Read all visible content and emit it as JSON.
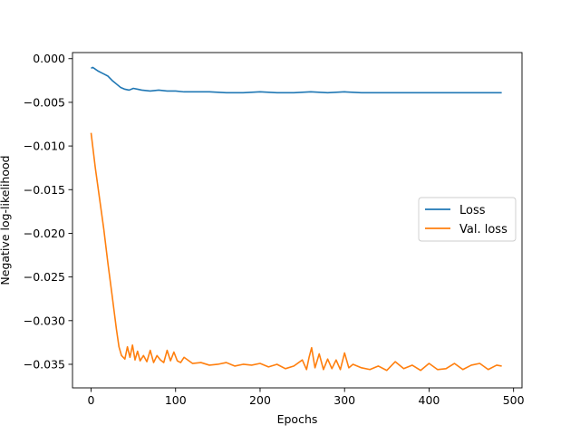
{
  "chart_data": {
    "type": "line",
    "title": "",
    "xlabel": "Epochs",
    "ylabel": "Negative log-likelihood",
    "xlim": [
      -22,
      510
    ],
    "ylim": [
      -0.0377,
      0.0007
    ],
    "x_ticks": [
      0,
      100,
      200,
      300,
      400,
      500
    ],
    "x_tick_labels": [
      "0",
      "100",
      "200",
      "300",
      "400",
      "500"
    ],
    "y_ticks": [
      0.0,
      -0.005,
      -0.01,
      -0.015,
      -0.02,
      -0.025,
      -0.03,
      -0.035
    ],
    "y_tick_labels": [
      "0.000",
      "−0.005",
      "−0.010",
      "−0.015",
      "−0.020",
      "−0.025",
      "−0.030",
      "−0.035"
    ],
    "grid": false,
    "legend_position": "center-right",
    "series": [
      {
        "name": "Loss",
        "color": "#1f77b4",
        "x": [
          0,
          2,
          5,
          8,
          12,
          16,
          20,
          25,
          30,
          35,
          40,
          45,
          50,
          55,
          60,
          70,
          80,
          90,
          100,
          110,
          120,
          140,
          160,
          180,
          200,
          220,
          240,
          260,
          280,
          300,
          320,
          340,
          360,
          380,
          400,
          420,
          440,
          460,
          486
        ],
        "y": [
          -0.0011,
          -0.001,
          -0.0012,
          -0.0014,
          -0.0016,
          -0.0018,
          -0.002,
          -0.0025,
          -0.0029,
          -0.0033,
          -0.0035,
          -0.0036,
          -0.0034,
          -0.0035,
          -0.0036,
          -0.0037,
          -0.0036,
          -0.0037,
          -0.0037,
          -0.0038,
          -0.0038,
          -0.0038,
          -0.0039,
          -0.0039,
          -0.0038,
          -0.0039,
          -0.0039,
          -0.0038,
          -0.0039,
          -0.0038,
          -0.0039,
          -0.0039,
          -0.0039,
          -0.0039,
          -0.0039,
          -0.0039,
          -0.0039,
          -0.0039,
          -0.0039
        ]
      },
      {
        "name": "Val. loss",
        "color": "#ff7f0e",
        "x": [
          0,
          5,
          10,
          15,
          20,
          25,
          30,
          33,
          36,
          40,
          43,
          46,
          49,
          52,
          55,
          58,
          62,
          66,
          70,
          74,
          78,
          82,
          86,
          90,
          94,
          98,
          102,
          106,
          110,
          120,
          130,
          140,
          150,
          160,
          170,
          180,
          190,
          200,
          210,
          220,
          230,
          240,
          250,
          255,
          258,
          261,
          265,
          270,
          275,
          280,
          285,
          290,
          295,
          300,
          305,
          310,
          320,
          330,
          340,
          350,
          360,
          370,
          380,
          390,
          400,
          410,
          420,
          430,
          440,
          450,
          460,
          470,
          480,
          486
        ],
        "y": [
          -0.0085,
          -0.0125,
          -0.016,
          -0.0195,
          -0.0235,
          -0.0272,
          -0.031,
          -0.033,
          -0.034,
          -0.0344,
          -0.033,
          -0.0342,
          -0.0328,
          -0.0345,
          -0.0335,
          -0.0346,
          -0.034,
          -0.0347,
          -0.0334,
          -0.0348,
          -0.034,
          -0.0345,
          -0.0348,
          -0.0334,
          -0.0346,
          -0.0336,
          -0.0346,
          -0.0348,
          -0.0342,
          -0.0349,
          -0.0348,
          -0.0351,
          -0.035,
          -0.0348,
          -0.0352,
          -0.035,
          -0.0351,
          -0.0349,
          -0.0353,
          -0.035,
          -0.0355,
          -0.0352,
          -0.0345,
          -0.0356,
          -0.0342,
          -0.0331,
          -0.0354,
          -0.0338,
          -0.0356,
          -0.0344,
          -0.0355,
          -0.0345,
          -0.0356,
          -0.0337,
          -0.0354,
          -0.035,
          -0.0354,
          -0.0356,
          -0.0352,
          -0.0357,
          -0.0347,
          -0.0355,
          -0.0351,
          -0.0357,
          -0.0349,
          -0.0356,
          -0.0355,
          -0.0349,
          -0.0356,
          -0.0351,
          -0.0349,
          -0.0356,
          -0.0351,
          -0.0352
        ]
      }
    ]
  }
}
